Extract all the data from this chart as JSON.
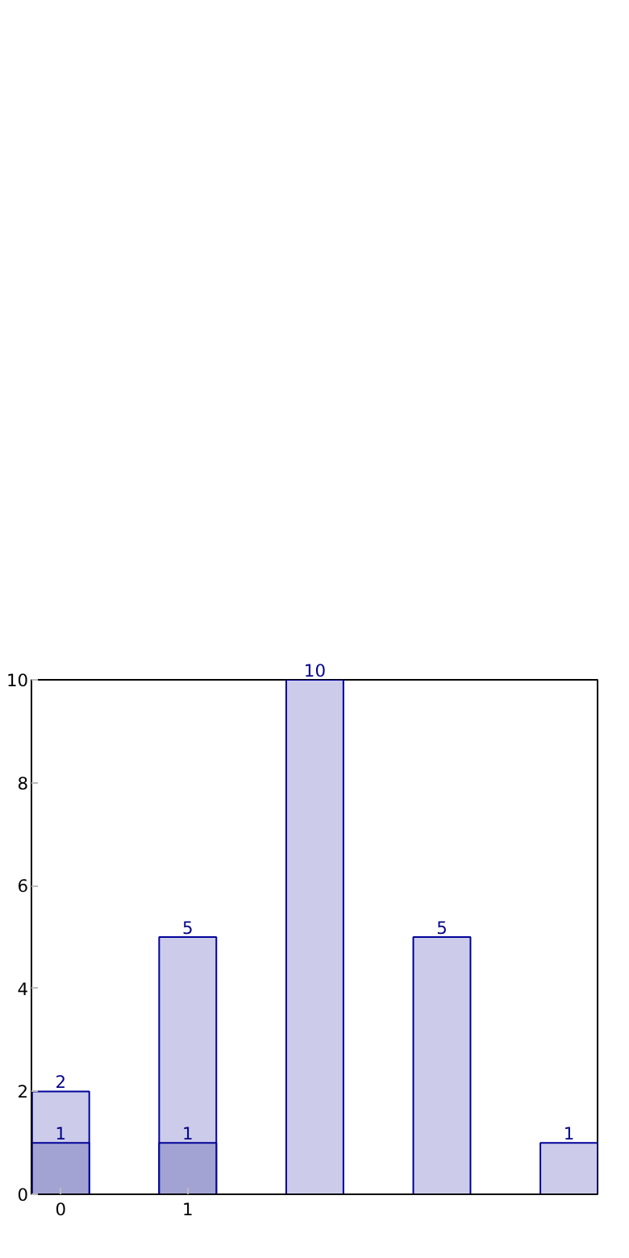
{
  "chart_data": {
    "type": "bar",
    "categories": [
      "0",
      "1",
      null,
      null,
      null
    ],
    "series": [
      {
        "color": "#ccccea",
        "values": [
          2,
          5,
          10,
          5,
          1
        ]
      },
      {
        "color": "#a3a3d3",
        "values": [
          1,
          1,
          null,
          null,
          null
        ]
      }
    ],
    "ylim": [
      0,
      10
    ],
    "yticks": [
      0,
      2,
      4,
      6,
      8,
      10
    ],
    "grid": false,
    "data_labels": true
  }
}
